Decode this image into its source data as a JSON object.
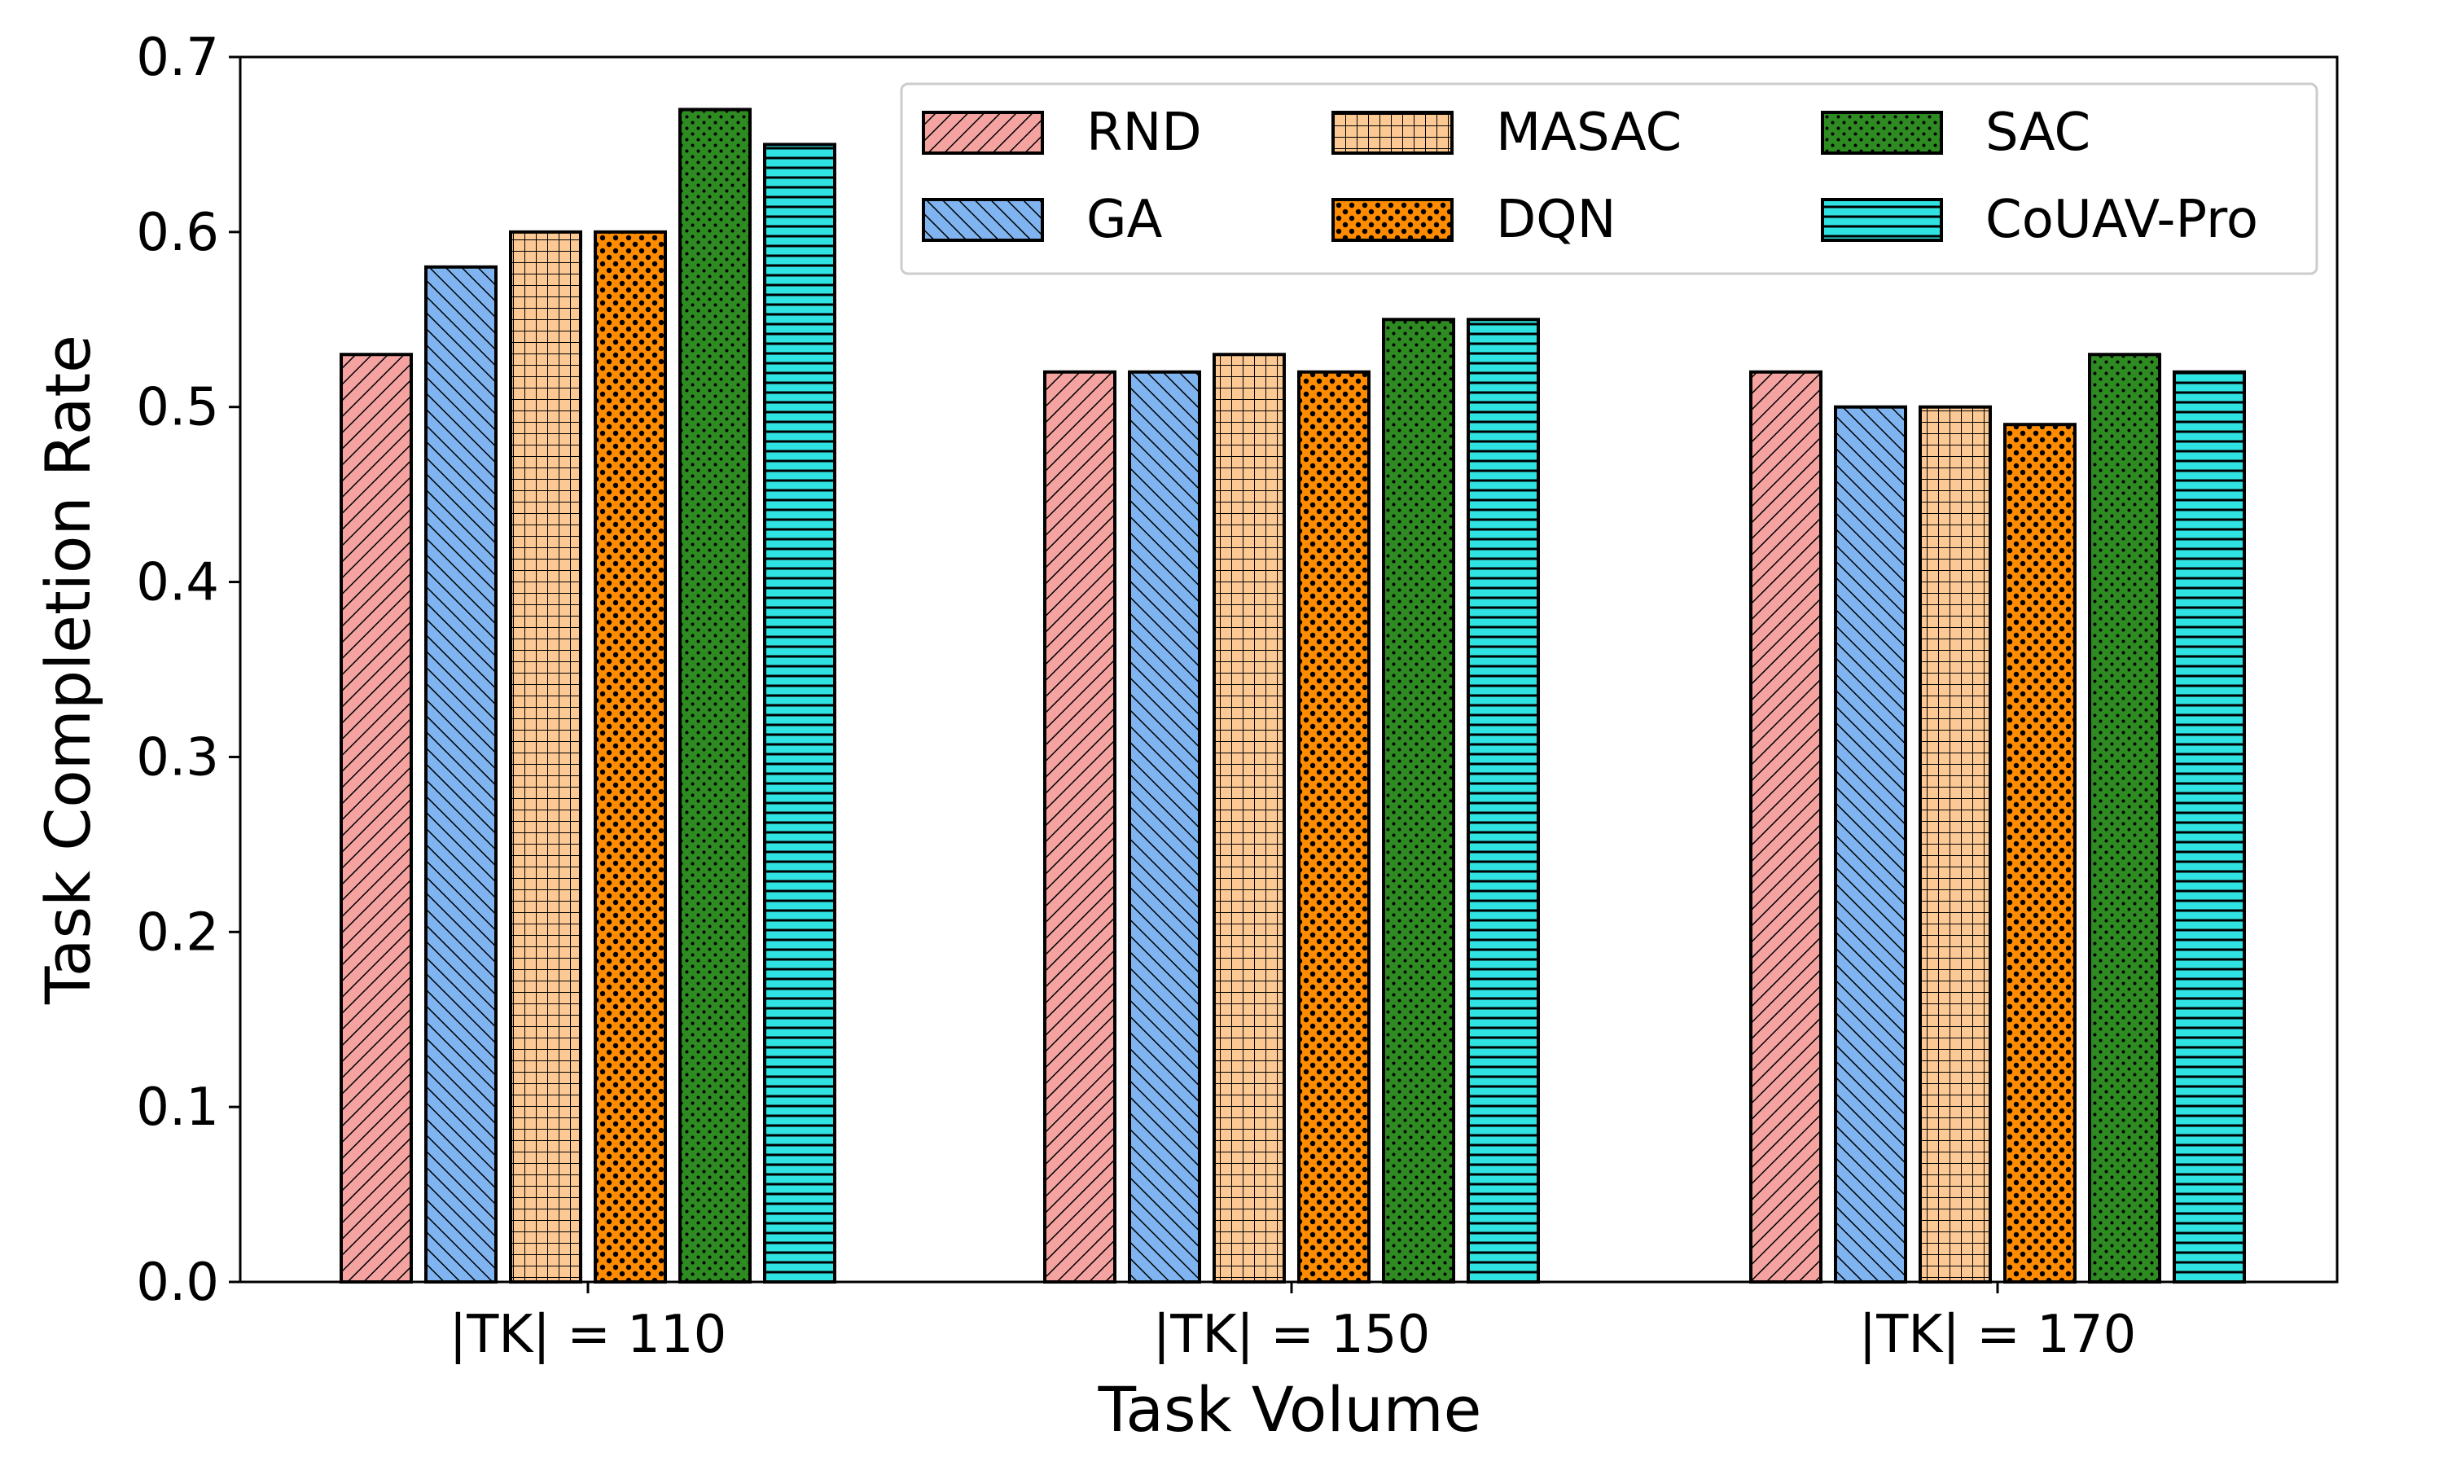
{
  "chart_data": {
    "type": "bar",
    "title": "",
    "xlabel": "Task Volume",
    "ylabel": "Task Completion Rate",
    "ylim": [
      0,
      0.7
    ],
    "yticks": [
      "0.0",
      "0.1",
      "0.2",
      "0.3",
      "0.4",
      "0.5",
      "0.6",
      "0.7"
    ],
    "categories": [
      "|TK| = 110",
      "|TK| = 150",
      "|TK| = 170"
    ],
    "legend_position": "top-right",
    "series": [
      {
        "name": "RND",
        "color": "#f4a3a0",
        "pattern": "diag-right",
        "values": [
          0.53,
          0.52,
          0.52
        ]
      },
      {
        "name": "GA",
        "color": "#7fb4f0",
        "pattern": "diag-left",
        "values": [
          0.58,
          0.52,
          0.5
        ]
      },
      {
        "name": "MASAC",
        "color": "#fcc995",
        "pattern": "grid",
        "values": [
          0.6,
          0.53,
          0.5
        ]
      },
      {
        "name": "DQN",
        "color": "#ff8c00",
        "pattern": "dots",
        "values": [
          0.6,
          0.52,
          0.49
        ]
      },
      {
        "name": "SAC",
        "color": "#2e8b22",
        "pattern": "small-dots",
        "values": [
          0.67,
          0.55,
          0.53
        ]
      },
      {
        "name": "CoUAV-Pro",
        "color": "#2fe3e3",
        "pattern": "horizontal",
        "values": [
          0.65,
          0.55,
          0.52
        ]
      }
    ]
  }
}
